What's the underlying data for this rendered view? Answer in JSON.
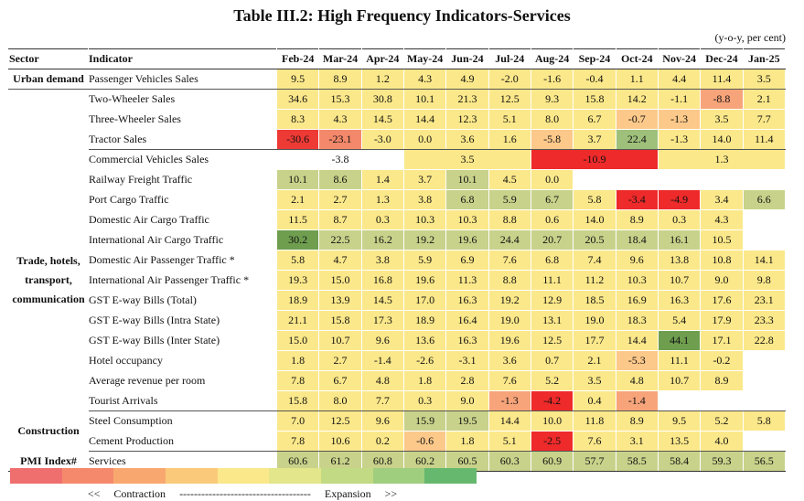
{
  "title": "Table III.2: High Frequency Indicators-Services",
  "unit": "(y-o-y, per cent)",
  "header": {
    "sector": "Sector",
    "indicator": "Indicator",
    "months": [
      "Feb-24",
      "Mar-24",
      "Apr-24",
      "May-24",
      "Jun-24",
      "Jul-24",
      "Aug-24",
      "Sep-24",
      "Oct-24",
      "Nov-24",
      "Dec-24",
      "Jan-25"
    ]
  },
  "rows": [
    {
      "sector": "Urban demand",
      "indicator": "Passenger Vehicles Sales",
      "cells": [
        [
          "9.5",
          "#fbe88a"
        ],
        [
          "8.9",
          "#fbe88a"
        ],
        [
          "1.2",
          "#fbe88a"
        ],
        [
          "4.3",
          "#fbe88a"
        ],
        [
          "4.9",
          "#fbe88a"
        ],
        [
          "-2.0",
          "#fbe88a"
        ],
        [
          "-1.6",
          "#fbe88a"
        ],
        [
          "-0.4",
          "#fbe88a"
        ],
        [
          "1.1",
          "#fbe88a"
        ],
        [
          "4.4",
          "#fbe88a"
        ],
        [
          "11.4",
          "#fbe88a"
        ],
        [
          "3.5",
          "#fbe88a"
        ]
      ]
    },
    {
      "sector": "",
      "indicator": "Two-Wheeler Sales",
      "cells": [
        [
          "34.6",
          "#fbe88a"
        ],
        [
          "15.3",
          "#fbe88a"
        ],
        [
          "30.8",
          "#fbe88a"
        ],
        [
          "10.1",
          "#fbe88a"
        ],
        [
          "21.3",
          "#fbe88a"
        ],
        [
          "12.5",
          "#fbe88a"
        ],
        [
          "9.3",
          "#fbe88a"
        ],
        [
          "15.8",
          "#fbe88a"
        ],
        [
          "14.2",
          "#fbe88a"
        ],
        [
          "-1.1",
          "#fbe88a"
        ],
        [
          "-8.8",
          "#f7a47a"
        ],
        [
          "2.1",
          "#fbe88a"
        ]
      ]
    },
    {
      "sector": "",
      "indicator": "Three-Wheeler Sales",
      "cells": [
        [
          "8.3",
          "#fbe88a"
        ],
        [
          "4.3",
          "#fbe88a"
        ],
        [
          "14.5",
          "#fbe88a"
        ],
        [
          "14.4",
          "#fbe88a"
        ],
        [
          "12.3",
          "#fbe88a"
        ],
        [
          "5.1",
          "#fbe88a"
        ],
        [
          "8.0",
          "#fbe88a"
        ],
        [
          "6.7",
          "#fbe88a"
        ],
        [
          "-0.7",
          "#fcc98a"
        ],
        [
          "-1.3",
          "#fcc98a"
        ],
        [
          "3.5",
          "#fbe88a"
        ],
        [
          "7.7",
          "#fbe88a"
        ]
      ]
    },
    {
      "sector": "",
      "indicator": "Tractor Sales",
      "cells": [
        [
          "-30.6",
          "#ee3a35"
        ],
        [
          "-23.1",
          "#f4886a"
        ],
        [
          "-3.0",
          "#fbe88a"
        ],
        [
          "0.0",
          "#fbe88a"
        ],
        [
          "3.6",
          "#fbe88a"
        ],
        [
          "1.6",
          "#fbe88a"
        ],
        [
          "-5.8",
          "#fcc98a"
        ],
        [
          "3.7",
          "#fbe88a"
        ],
        [
          "22.4",
          "#9ec07a"
        ],
        [
          "-1.3",
          "#fbe88a"
        ],
        [
          "14.0",
          "#fbe88a"
        ],
        [
          "11.4",
          "#fbe88a"
        ]
      ]
    },
    {
      "sector": "",
      "indicator": "Commercial Vehicles Sales",
      "cells": [
        [
          "-3.8",
          "#ffffff",
          3
        ],
        [
          "3.5",
          "#fbe88a",
          3
        ],
        [
          "-10.9",
          "#ee2a2a",
          3
        ],
        [
          "1.3",
          "#fbe88a",
          3
        ]
      ]
    },
    {
      "sector": "",
      "indicator": "Railway Freight Traffic",
      "cells": [
        [
          "10.1",
          "#c8d28a"
        ],
        [
          "8.6",
          "#c8d28a"
        ],
        [
          "1.4",
          "#fbe88a"
        ],
        [
          "3.7",
          "#fbe88a"
        ],
        [
          "10.1",
          "#c8d28a"
        ],
        [
          "4.5",
          "#fbe88a"
        ],
        [
          "0.0",
          "#fbe88a"
        ],
        [
          "",
          "#ffffff"
        ],
        [
          "",
          "#ffffff"
        ],
        [
          "",
          "#ffffff"
        ],
        [
          "",
          "#ffffff"
        ],
        [
          "",
          "#ffffff"
        ]
      ]
    },
    {
      "sector": "",
      "indicator": "Port Cargo Traffic",
      "cells": [
        [
          "2.1",
          "#fbe88a"
        ],
        [
          "2.7",
          "#fbe88a"
        ],
        [
          "1.3",
          "#fbe88a"
        ],
        [
          "3.8",
          "#fbe88a"
        ],
        [
          "6.8",
          "#c8d28a"
        ],
        [
          "5.9",
          "#c8d28a"
        ],
        [
          "6.7",
          "#c8d28a"
        ],
        [
          "5.8",
          "#fbe88a"
        ],
        [
          "-3.4",
          "#ee2a2a"
        ],
        [
          "-4.9",
          "#ee2a2a"
        ],
        [
          "3.4",
          "#fbe88a"
        ],
        [
          "6.6",
          "#c8d28a"
        ]
      ]
    },
    {
      "sector": "",
      "indicator": "Domestic Air Cargo Traffic",
      "cells": [
        [
          "11.5",
          "#fbe88a"
        ],
        [
          "8.7",
          "#fbe88a"
        ],
        [
          "0.3",
          "#fbe88a"
        ],
        [
          "10.3",
          "#fbe88a"
        ],
        [
          "10.3",
          "#fbe88a"
        ],
        [
          "8.8",
          "#fbe88a"
        ],
        [
          "0.6",
          "#fbe88a"
        ],
        [
          "14.0",
          "#fbe88a"
        ],
        [
          "8.9",
          "#fbe88a"
        ],
        [
          "0.3",
          "#fbe88a"
        ],
        [
          "4.3",
          "#fbe88a"
        ],
        [
          "",
          "#ffffff"
        ]
      ]
    },
    {
      "sector": "",
      "indicator": "International Air Cargo Traffic",
      "cells": [
        [
          "30.2",
          "#6f9e4f"
        ],
        [
          "22.5",
          "#c8d28a"
        ],
        [
          "16.2",
          "#c8d28a"
        ],
        [
          "19.2",
          "#c8d28a"
        ],
        [
          "19.6",
          "#c8d28a"
        ],
        [
          "24.4",
          "#c8d28a"
        ],
        [
          "20.7",
          "#c8d28a"
        ],
        [
          "20.5",
          "#c8d28a"
        ],
        [
          "18.4",
          "#c8d28a"
        ],
        [
          "16.1",
          "#c8d28a"
        ],
        [
          "10.5",
          "#fbe88a"
        ],
        [
          "",
          "#ffffff"
        ]
      ]
    },
    {
      "sector": "Trade, hotels, transport, communication",
      "indicator": "Domestic Air Passenger Traffic *",
      "cells": [
        [
          "5.8",
          "#fbe88a"
        ],
        [
          "4.7",
          "#fbe88a"
        ],
        [
          "3.8",
          "#fbe88a"
        ],
        [
          "5.9",
          "#fbe88a"
        ],
        [
          "6.9",
          "#fbe88a"
        ],
        [
          "7.6",
          "#fbe88a"
        ],
        [
          "6.8",
          "#fbe88a"
        ],
        [
          "7.4",
          "#fbe88a"
        ],
        [
          "9.6",
          "#fbe88a"
        ],
        [
          "13.8",
          "#fbe88a"
        ],
        [
          "10.8",
          "#fbe88a"
        ],
        [
          "14.1",
          "#fbe88a"
        ]
      ]
    },
    {
      "sector": "",
      "indicator": "International Air Passenger Traffic *",
      "cells": [
        [
          "19.3",
          "#fbe88a"
        ],
        [
          "15.0",
          "#fbe88a"
        ],
        [
          "16.8",
          "#fbe88a"
        ],
        [
          "19.6",
          "#fbe88a"
        ],
        [
          "11.3",
          "#fbe88a"
        ],
        [
          "8.8",
          "#fbe88a"
        ],
        [
          "11.1",
          "#fbe88a"
        ],
        [
          "11.2",
          "#fbe88a"
        ],
        [
          "10.3",
          "#fbe88a"
        ],
        [
          "10.7",
          "#fbe88a"
        ],
        [
          "9.0",
          "#fbe88a"
        ],
        [
          "9.8",
          "#fbe88a"
        ]
      ]
    },
    {
      "sector": "",
      "indicator": "GST E-way Bills (Total)",
      "cells": [
        [
          "18.9",
          "#fbe88a"
        ],
        [
          "13.9",
          "#fbe88a"
        ],
        [
          "14.5",
          "#fbe88a"
        ],
        [
          "17.0",
          "#fbe88a"
        ],
        [
          "16.3",
          "#fbe88a"
        ],
        [
          "19.2",
          "#fbe88a"
        ],
        [
          "12.9",
          "#fbe88a"
        ],
        [
          "18.5",
          "#fbe88a"
        ],
        [
          "16.9",
          "#fbe88a"
        ],
        [
          "16.3",
          "#fbe88a"
        ],
        [
          "17.6",
          "#fbe88a"
        ],
        [
          "23.1",
          "#fbe88a"
        ]
      ]
    },
    {
      "sector": "",
      "indicator": "GST E-way Bills (Intra State)",
      "cells": [
        [
          "21.1",
          "#fbe88a"
        ],
        [
          "15.8",
          "#fbe88a"
        ],
        [
          "17.3",
          "#fbe88a"
        ],
        [
          "18.9",
          "#fbe88a"
        ],
        [
          "16.4",
          "#fbe88a"
        ],
        [
          "19.0",
          "#fbe88a"
        ],
        [
          "13.1",
          "#fbe88a"
        ],
        [
          "19.0",
          "#fbe88a"
        ],
        [
          "18.3",
          "#fbe88a"
        ],
        [
          "5.4",
          "#fbe88a"
        ],
        [
          "17.9",
          "#fbe88a"
        ],
        [
          "23.3",
          "#fbe88a"
        ]
      ]
    },
    {
      "sector": "",
      "indicator": "GST E-way Bills (Inter State)",
      "cells": [
        [
          "15.0",
          "#fbe88a"
        ],
        [
          "10.7",
          "#fbe88a"
        ],
        [
          "9.6",
          "#fbe88a"
        ],
        [
          "13.6",
          "#fbe88a"
        ],
        [
          "16.3",
          "#fbe88a"
        ],
        [
          "19.6",
          "#fbe88a"
        ],
        [
          "12.5",
          "#fbe88a"
        ],
        [
          "17.7",
          "#fbe88a"
        ],
        [
          "14.4",
          "#fbe88a"
        ],
        [
          "44.1",
          "#6f9e4f"
        ],
        [
          "17.1",
          "#fbe88a"
        ],
        [
          "22.8",
          "#fbe88a"
        ]
      ]
    },
    {
      "sector": "",
      "indicator": "Hotel occupancy",
      "cells": [
        [
          "1.8",
          "#fbe88a"
        ],
        [
          "2.7",
          "#fbe88a"
        ],
        [
          "-1.4",
          "#fbe88a"
        ],
        [
          "-2.6",
          "#fbe88a"
        ],
        [
          "-3.1",
          "#fbe88a"
        ],
        [
          "3.6",
          "#fbe88a"
        ],
        [
          "0.7",
          "#fbe88a"
        ],
        [
          "2.1",
          "#fbe88a"
        ],
        [
          "-5.3",
          "#fcc98a"
        ],
        [
          "11.1",
          "#fbe88a"
        ],
        [
          "-0.2",
          "#fbe88a"
        ],
        [
          "",
          "#ffffff"
        ]
      ]
    },
    {
      "sector": "",
      "indicator": "Average revenue per room",
      "cells": [
        [
          "7.8",
          "#fbe88a"
        ],
        [
          "6.7",
          "#fbe88a"
        ],
        [
          "4.8",
          "#fbe88a"
        ],
        [
          "1.8",
          "#fbe88a"
        ],
        [
          "2.8",
          "#fbe88a"
        ],
        [
          "7.6",
          "#fbe88a"
        ],
        [
          "5.2",
          "#fbe88a"
        ],
        [
          "3.5",
          "#fbe88a"
        ],
        [
          "4.8",
          "#fbe88a"
        ],
        [
          "10.7",
          "#fbe88a"
        ],
        [
          "8.9",
          "#fbe88a"
        ],
        [
          "",
          "#ffffff"
        ]
      ]
    },
    {
      "sector": "",
      "indicator": "Tourist Arrivals",
      "cells": [
        [
          "15.8",
          "#fbe88a"
        ],
        [
          "8.0",
          "#fbe88a"
        ],
        [
          "7.7",
          "#fbe88a"
        ],
        [
          "0.3",
          "#fbe88a"
        ],
        [
          "9.0",
          "#fbe88a"
        ],
        [
          "-1.3",
          "#f7a47a"
        ],
        [
          "-4.2",
          "#ee2a2a"
        ],
        [
          "0.4",
          "#fbe88a"
        ],
        [
          "-1.4",
          "#f7a47a"
        ],
        [
          "",
          "#ffffff"
        ],
        [
          "",
          "#ffffff"
        ],
        [
          "",
          "#ffffff"
        ]
      ]
    },
    {
      "sector": "Construction",
      "indicator": "Steel Consumption",
      "cells": [
        [
          "7.0",
          "#fbe88a"
        ],
        [
          "12.5",
          "#fbe88a"
        ],
        [
          "9.6",
          "#fbe88a"
        ],
        [
          "15.9",
          "#c8d28a"
        ],
        [
          "19.5",
          "#c8d28a"
        ],
        [
          "14.4",
          "#fbe88a"
        ],
        [
          "10.0",
          "#fbe88a"
        ],
        [
          "11.8",
          "#fbe88a"
        ],
        [
          "8.9",
          "#fbe88a"
        ],
        [
          "9.5",
          "#fbe88a"
        ],
        [
          "5.2",
          "#fbe88a"
        ],
        [
          "5.8",
          "#fbe88a"
        ]
      ]
    },
    {
      "sector": "",
      "indicator": "Cement Production",
      "cells": [
        [
          "7.8",
          "#fbe88a"
        ],
        [
          "10.6",
          "#fbe88a"
        ],
        [
          "0.2",
          "#fbe88a"
        ],
        [
          "-0.6",
          "#fcc98a"
        ],
        [
          "1.8",
          "#fbe88a"
        ],
        [
          "5.1",
          "#fbe88a"
        ],
        [
          "-2.5",
          "#ee2a2a"
        ],
        [
          "7.6",
          "#fbe88a"
        ],
        [
          "3.1",
          "#fbe88a"
        ],
        [
          "13.5",
          "#fbe88a"
        ],
        [
          "4.0",
          "#fbe88a"
        ],
        [
          "",
          "#ffffff"
        ]
      ]
    },
    {
      "sector": "PMI Index#",
      "indicator": "Services",
      "cells": [
        [
          "60.6",
          "#c8d28a"
        ],
        [
          "61.2",
          "#c8d28a"
        ],
        [
          "60.8",
          "#c8d28a"
        ],
        [
          "60.2",
          "#c8d28a"
        ],
        [
          "60.5",
          "#c8d28a"
        ],
        [
          "60.3",
          "#c8d28a"
        ],
        [
          "60.9",
          "#c8d28a"
        ],
        [
          "57.7",
          "#c8d28a"
        ],
        [
          "58.5",
          "#c8d28a"
        ],
        [
          "58.4",
          "#c8d28a"
        ],
        [
          "59.3",
          "#c8d28a"
        ],
        [
          "56.5",
          "#c8d28a"
        ]
      ]
    }
  ],
  "legend": {
    "colors": [
      "#ef6f6f",
      "#f5896b",
      "#f8a86f",
      "#fbc97a",
      "#fbe88a",
      "#e3e68a",
      "#c2da83",
      "#9fce7e",
      "#66b86f"
    ],
    "left": "<<",
    "contraction": "Contraction",
    "dashes": "------------------------------------",
    "expansion": "Expansion",
    "right": ">>"
  }
}
